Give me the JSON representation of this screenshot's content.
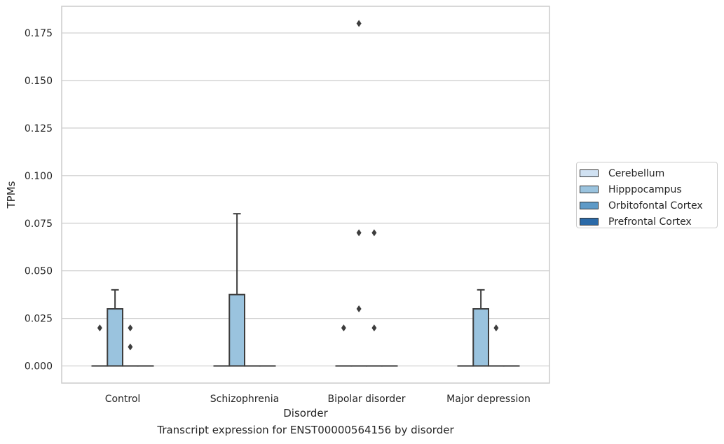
{
  "caption": "Transcript expression for ENST00000564156 by disorder",
  "legend": {
    "items": [
      {
        "label": "Cerebellum",
        "color": "#d0e1f2"
      },
      {
        "label": "Hipppocampus",
        "color": "#9ac3de"
      },
      {
        "label": "Orbitofontal Cortex",
        "color": "#5e9ac7"
      },
      {
        "label": "Prefrontal Cortex",
        "color": "#2b6aa8"
      }
    ]
  },
  "chart_data": {
    "type": "box",
    "xlabel": "Disorder",
    "ylabel": "TPMs",
    "ylim": [
      -0.009,
      0.189
    ],
    "yticks": [
      0.0,
      0.025,
      0.05,
      0.075,
      0.1,
      0.125,
      0.15,
      0.175
    ],
    "ytick_labels": [
      "0.000",
      "0.025",
      "0.050",
      "0.075",
      "0.100",
      "0.125",
      "0.150",
      "0.175"
    ],
    "grid": true,
    "legend_position": "right",
    "categories": [
      "Control",
      "Schizophrenia",
      "Bipolar disorder",
      "Major depression"
    ],
    "series": [
      {
        "name": "Cerebellum",
        "boxes": [
          {
            "q1": 0,
            "median": 0,
            "q3": 0,
            "whisker_low": 0,
            "whisker_high": 0,
            "outliers": [
              0.02
            ]
          },
          {
            "q1": 0,
            "median": 0,
            "q3": 0,
            "whisker_low": 0,
            "whisker_high": 0,
            "outliers": []
          },
          {
            "q1": 0,
            "median": 0,
            "q3": 0,
            "whisker_low": 0,
            "whisker_high": 0,
            "outliers": [
              0.02
            ]
          },
          {
            "q1": 0,
            "median": 0,
            "q3": 0,
            "whisker_low": 0,
            "whisker_high": 0,
            "outliers": []
          }
        ]
      },
      {
        "name": "Hipppocampus",
        "boxes": [
          {
            "q1": 0,
            "median": 0,
            "q3": 0.03,
            "whisker_low": 0,
            "whisker_high": 0.04,
            "outliers": []
          },
          {
            "q1": 0,
            "median": 0,
            "q3": 0.0375,
            "whisker_low": 0,
            "whisker_high": 0.08,
            "outliers": []
          },
          {
            "q1": 0,
            "median": 0,
            "q3": 0,
            "whisker_low": 0,
            "whisker_high": 0,
            "outliers": [
              0.18,
              0.07,
              0.03
            ]
          },
          {
            "q1": 0,
            "median": 0,
            "q3": 0.03,
            "whisker_low": 0,
            "whisker_high": 0.04,
            "outliers": []
          }
        ]
      },
      {
        "name": "Orbitofontal Cortex",
        "boxes": [
          {
            "q1": 0,
            "median": 0,
            "q3": 0,
            "whisker_low": 0,
            "whisker_high": 0,
            "outliers": [
              0.02,
              0.01
            ]
          },
          {
            "q1": 0,
            "median": 0,
            "q3": 0,
            "whisker_low": 0,
            "whisker_high": 0,
            "outliers": []
          },
          {
            "q1": 0,
            "median": 0,
            "q3": 0,
            "whisker_low": 0,
            "whisker_high": 0,
            "outliers": [
              0.07,
              0.02
            ]
          },
          {
            "q1": 0,
            "median": 0,
            "q3": 0,
            "whisker_low": 0,
            "whisker_high": 0,
            "outliers": [
              0.02
            ]
          }
        ]
      },
      {
        "name": "Prefrontal Cortex",
        "boxes": [
          {
            "q1": 0,
            "median": 0,
            "q3": 0,
            "whisker_low": 0,
            "whisker_high": 0,
            "outliers": []
          },
          {
            "q1": 0,
            "median": 0,
            "q3": 0,
            "whisker_low": 0,
            "whisker_high": 0,
            "outliers": []
          },
          {
            "q1": 0,
            "median": 0,
            "q3": 0,
            "whisker_low": 0,
            "whisker_high": 0,
            "outliers": []
          },
          {
            "q1": 0,
            "median": 0,
            "q3": 0,
            "whisker_low": 0,
            "whisker_high": 0,
            "outliers": []
          }
        ]
      }
    ]
  }
}
